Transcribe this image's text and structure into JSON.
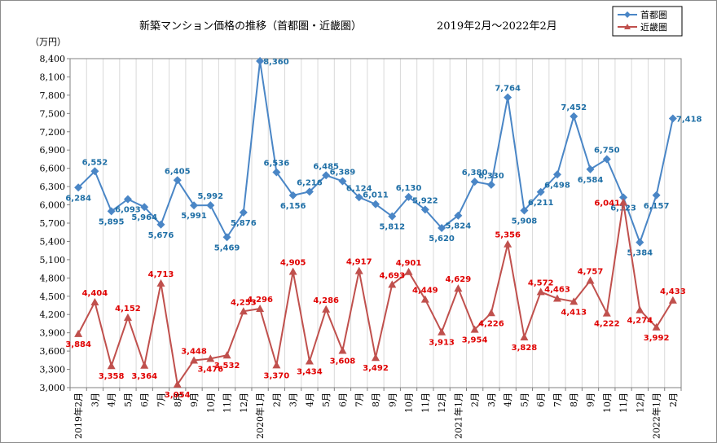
{
  "chart_data": {
    "type": "line",
    "title": "新築マンション価格の推移（首都圏・近畿圏）",
    "period": "2019年2月～2022年2月",
    "ylabel": "（万円）",
    "ylim": [
      3000,
      8400
    ],
    "ystep": 300,
    "categories": [
      "2019年2月",
      "3月",
      "4月",
      "5月",
      "6月",
      "7月",
      "8月",
      "9月",
      "10月",
      "11月",
      "12月",
      "2020年1月",
      "2月",
      "3月",
      "4月",
      "5月",
      "6月",
      "7月",
      "8月",
      "9月",
      "10月",
      "11月",
      "12月",
      "2021年1月",
      "2月",
      "3月",
      "4月",
      "5月",
      "6月",
      "7月",
      "8月",
      "9月",
      "10月",
      "11月",
      "12月",
      "2022年1月",
      "2月"
    ],
    "series": [
      {
        "name": "首都圏",
        "color": "#4a86c6",
        "label_color": "#1f6fa6",
        "marker": "diamond",
        "values": [
          6284,
          6552,
          5895,
          6093,
          5964,
          5676,
          6405,
          5991,
          5992,
          5469,
          5876,
          8360,
          6536,
          6156,
          6216,
          6485,
          6389,
          6124,
          6011,
          5812,
          6130,
          5922,
          5620,
          5824,
          6380,
          6330,
          7764,
          5908,
          6211,
          6498,
          7452,
          6584,
          6750,
          6123,
          5384,
          6157,
          7418
        ]
      },
      {
        "name": "近畿圏",
        "color": "#c0504d",
        "label_color": "#e00000",
        "marker": "triangle",
        "values": [
          3884,
          4404,
          3358,
          4152,
          3364,
          4713,
          3054,
          3448,
          3476,
          3532,
          4253,
          4296,
          3370,
          4905,
          3434,
          4286,
          3608,
          4917,
          3492,
          4693,
          4901,
          4449,
          3913,
          4629,
          3954,
          4226,
          5356,
          3828,
          4572,
          4463,
          4413,
          4757,
          4222,
          6041,
          4274,
          3992,
          4433
        ]
      }
    ],
    "grid": "vertical",
    "legend_position": "top-right"
  }
}
